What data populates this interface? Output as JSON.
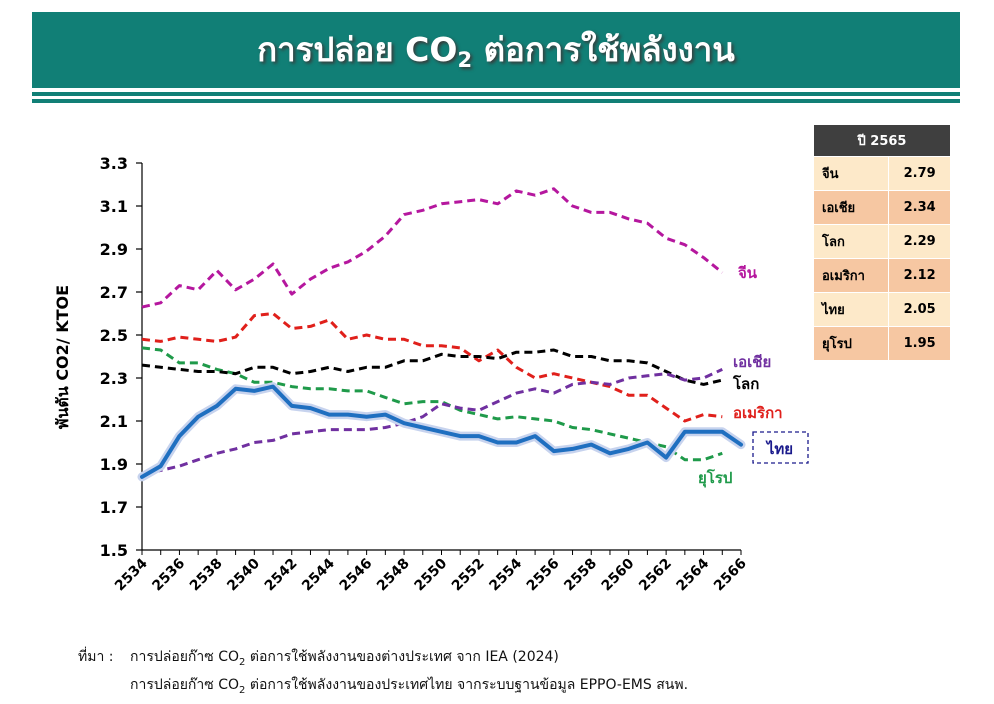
{
  "header": {
    "title_prefix": "การปล่อย CO",
    "title_sub": "2",
    "title_suffix": " ต่อการใช้พลังงาน"
  },
  "table": {
    "header": "ปี 2565",
    "rows": [
      {
        "label": "จีน",
        "value": "2.79"
      },
      {
        "label": "เอเชีย",
        "value": "2.34"
      },
      {
        "label": "โลก",
        "value": "2.29"
      },
      {
        "label": "อเมริกา",
        "value": "2.12"
      },
      {
        "label": "ไทย",
        "value": "2.05"
      },
      {
        "label": "ยุโรป",
        "value": "1.95"
      }
    ]
  },
  "source": {
    "prefix": "ที่มา :",
    "line1_a": "การปล่อยก๊าซ CO",
    "line1_sub": "2",
    "line1_b": " ต่อการใช้พลังงานของต่างประเทศ จาก IEA (2024)",
    "line2_a": "การปล่อยก๊าซ CO",
    "line2_sub": "2",
    "line2_b": " ต่อการใช้พลังงานของประเทศไทย จากระบบฐานข้อมูล EPPO-EMS สนพ."
  },
  "chart_data": {
    "type": "line",
    "ylabel": "พันตัน CO2/ KTOE",
    "ylim": [
      1.5,
      3.3
    ],
    "yticks": [
      "1.5",
      "1.7",
      "1.9",
      "2.1",
      "2.3",
      "2.5",
      "2.7",
      "2.9",
      "3.1",
      "3.3"
    ],
    "xlim": [
      2534,
      2566
    ],
    "xticks": [
      "2534",
      "2536",
      "2538",
      "2540",
      "2542",
      "2544",
      "2546",
      "2548",
      "2550",
      "2552",
      "2554",
      "2556",
      "2558",
      "2560",
      "2562",
      "2564",
      "2566"
    ],
    "grid": false,
    "series": [
      {
        "name": "จีน",
        "color": "#b5179e",
        "style": "dashed",
        "x": [
          2534,
          2535,
          2536,
          2537,
          2538,
          2539,
          2540,
          2541,
          2542,
          2543,
          2544,
          2545,
          2546,
          2547,
          2548,
          2549,
          2550,
          2551,
          2552,
          2553,
          2554,
          2555,
          2556,
          2557,
          2558,
          2559,
          2560,
          2561,
          2562,
          2563,
          2564,
          2565
        ],
        "y": [
          2.63,
          2.65,
          2.73,
          2.71,
          2.8,
          2.71,
          2.76,
          2.83,
          2.69,
          2.76,
          2.81,
          2.84,
          2.89,
          2.96,
          3.06,
          3.08,
          3.11,
          3.12,
          3.13,
          3.11,
          3.17,
          3.15,
          3.18,
          3.1,
          3.07,
          3.07,
          3.04,
          3.02,
          2.95,
          2.92,
          2.86,
          2.79
        ]
      },
      {
        "name": "เอเชีย",
        "color": "#7030a0",
        "style": "dashed",
        "x": [
          2534,
          2535,
          2536,
          2537,
          2538,
          2539,
          2540,
          2541,
          2542,
          2543,
          2544,
          2545,
          2546,
          2547,
          2548,
          2549,
          2550,
          2551,
          2552,
          2553,
          2554,
          2555,
          2556,
          2557,
          2558,
          2559,
          2560,
          2561,
          2562,
          2563,
          2564,
          2565
        ],
        "y": [
          1.85,
          1.87,
          1.89,
          1.92,
          1.95,
          1.97,
          2.0,
          2.01,
          2.04,
          2.05,
          2.06,
          2.06,
          2.06,
          2.07,
          2.09,
          2.12,
          2.18,
          2.16,
          2.15,
          2.19,
          2.23,
          2.25,
          2.23,
          2.27,
          2.28,
          2.27,
          2.3,
          2.31,
          2.32,
          2.29,
          2.3,
          2.34
        ]
      },
      {
        "name": "โลก",
        "color": "#000000",
        "style": "dashed",
        "x": [
          2534,
          2535,
          2536,
          2537,
          2538,
          2539,
          2540,
          2541,
          2542,
          2543,
          2544,
          2545,
          2546,
          2547,
          2548,
          2549,
          2550,
          2551,
          2552,
          2553,
          2554,
          2555,
          2556,
          2557,
          2558,
          2559,
          2560,
          2561,
          2562,
          2563,
          2564,
          2565
        ],
        "y": [
          2.36,
          2.35,
          2.34,
          2.33,
          2.33,
          2.32,
          2.35,
          2.35,
          2.32,
          2.33,
          2.35,
          2.33,
          2.35,
          2.35,
          2.38,
          2.38,
          2.41,
          2.4,
          2.4,
          2.39,
          2.42,
          2.42,
          2.43,
          2.4,
          2.4,
          2.38,
          2.38,
          2.37,
          2.33,
          2.29,
          2.27,
          2.29
        ]
      },
      {
        "name": "อเมริกา",
        "color": "#e0201b",
        "style": "dashed",
        "x": [
          2534,
          2535,
          2536,
          2537,
          2538,
          2539,
          2540,
          2541,
          2542,
          2543,
          2544,
          2545,
          2546,
          2547,
          2548,
          2549,
          2550,
          2551,
          2552,
          2553,
          2554,
          2555,
          2556,
          2557,
          2558,
          2559,
          2560,
          2561,
          2562,
          2563,
          2564,
          2565
        ],
        "y": [
          2.48,
          2.47,
          2.49,
          2.48,
          2.47,
          2.49,
          2.59,
          2.6,
          2.53,
          2.54,
          2.57,
          2.48,
          2.5,
          2.48,
          2.48,
          2.45,
          2.45,
          2.44,
          2.38,
          2.43,
          2.35,
          2.3,
          2.32,
          2.3,
          2.28,
          2.26,
          2.22,
          2.22,
          2.16,
          2.1,
          2.13,
          2.12
        ]
      },
      {
        "name": "ไทย",
        "color": "#1f6fc0",
        "style": "solid",
        "x": [
          2534,
          2535,
          2536,
          2537,
          2538,
          2539,
          2540,
          2541,
          2542,
          2543,
          2544,
          2545,
          2546,
          2547,
          2548,
          2549,
          2550,
          2551,
          2552,
          2553,
          2554,
          2555,
          2556,
          2557,
          2558,
          2559,
          2560,
          2561,
          2562,
          2563,
          2564,
          2565,
          2566
        ],
        "y": [
          1.84,
          1.89,
          2.03,
          2.12,
          2.17,
          2.25,
          2.24,
          2.26,
          2.17,
          2.16,
          2.13,
          2.13,
          2.12,
          2.13,
          2.09,
          2.07,
          2.05,
          2.03,
          2.03,
          2.0,
          2.0,
          2.03,
          1.96,
          1.97,
          1.99,
          1.95,
          1.97,
          2.0,
          1.93,
          2.05,
          2.05,
          2.05,
          1.99
        ]
      },
      {
        "name": "ยุโรป",
        "color": "#1f9a4a",
        "style": "dashed",
        "x": [
          2534,
          2535,
          2536,
          2537,
          2538,
          2539,
          2540,
          2541,
          2542,
          2543,
          2544,
          2545,
          2546,
          2547,
          2548,
          2549,
          2550,
          2551,
          2552,
          2553,
          2554,
          2555,
          2556,
          2557,
          2558,
          2559,
          2560,
          2561,
          2562,
          2563,
          2564,
          2565
        ],
        "y": [
          2.44,
          2.43,
          2.37,
          2.37,
          2.34,
          2.32,
          2.28,
          2.28,
          2.26,
          2.25,
          2.25,
          2.24,
          2.24,
          2.21,
          2.18,
          2.19,
          2.19,
          2.15,
          2.13,
          2.11,
          2.12,
          2.11,
          2.1,
          2.07,
          2.06,
          2.04,
          2.02,
          2.0,
          1.98,
          1.92,
          1.92,
          1.95
        ]
      }
    ]
  }
}
